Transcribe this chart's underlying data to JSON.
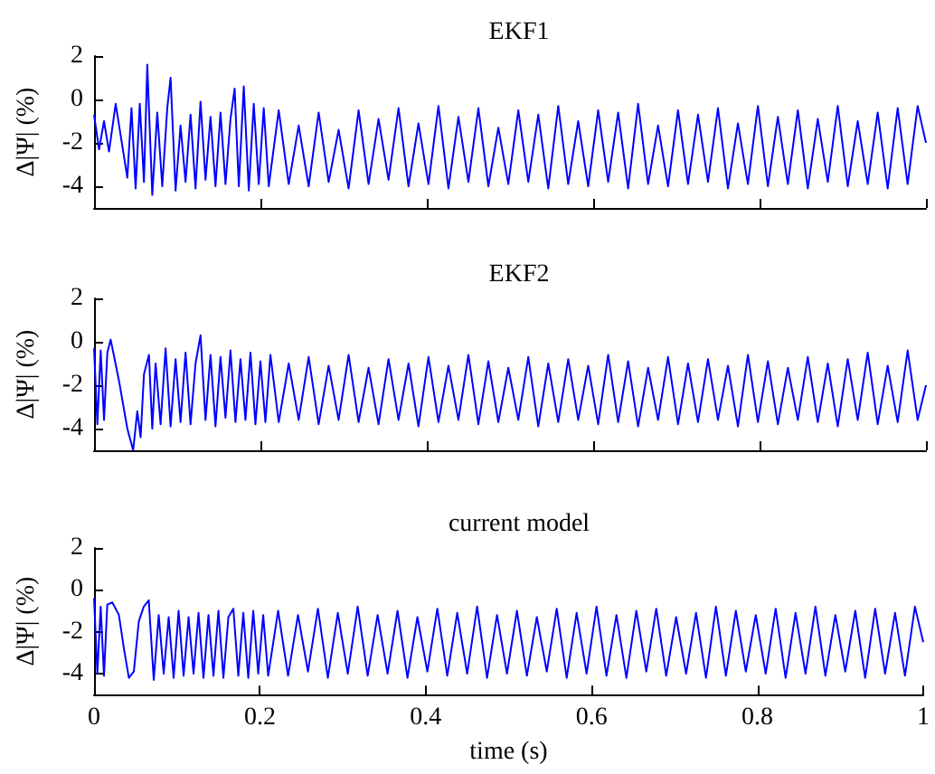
{
  "chart_data": [
    {
      "type": "line",
      "title": "EKF1",
      "ylabel": "Δ|Ψ| (%)",
      "xlim": [
        0,
        1
      ],
      "xticks": [
        0,
        0.2,
        0.4,
        0.6,
        0.8,
        1
      ],
      "ylim": [
        -5,
        2
      ],
      "yticks": [
        -4,
        -2,
        0,
        2
      ],
      "tick_labels": "y",
      "grid": false,
      "series": [
        {
          "color": "#0000ff",
          "x": [
            0,
            0.006,
            0.012,
            0.018,
            0.026,
            0.04,
            0.045,
            0.05,
            0.055,
            0.06,
            0.064,
            0.07,
            0.076,
            0.082,
            0.088,
            0.092,
            0.098,
            0.104,
            0.11,
            0.116,
            0.122,
            0.128,
            0.134,
            0.14,
            0.146,
            0.152,
            0.158,
            0.164,
            0.169,
            0.174,
            0.18,
            0.186,
            0.192,
            0.198,
            0.204,
            0.21,
            0.222,
            0.234,
            0.246,
            0.258,
            0.27,
            0.282,
            0.294,
            0.306,
            0.318,
            0.33,
            0.342,
            0.354,
            0.366,
            0.378,
            0.39,
            0.402,
            0.414,
            0.426,
            0.438,
            0.45,
            0.462,
            0.474,
            0.486,
            0.498,
            0.51,
            0.522,
            0.534,
            0.546,
            0.558,
            0.57,
            0.582,
            0.594,
            0.606,
            0.618,
            0.63,
            0.642,
            0.654,
            0.666,
            0.678,
            0.69,
            0.702,
            0.714,
            0.726,
            0.738,
            0.75,
            0.762,
            0.774,
            0.786,
            0.798,
            0.81,
            0.822,
            0.834,
            0.846,
            0.858,
            0.87,
            0.882,
            0.894,
            0.906,
            0.918,
            0.93,
            0.942,
            0.954,
            0.966,
            0.978,
            0.99,
            1
          ],
          "values": [
            -0.7,
            -2.3,
            -1.0,
            -2.4,
            -0.2,
            -3.6,
            -0.4,
            -4.1,
            -0.2,
            -3.8,
            1.6,
            -4.4,
            -0.6,
            -4.0,
            -0.4,
            1.0,
            -4.2,
            -1.2,
            -3.8,
            -0.7,
            -4.1,
            -0.1,
            -3.7,
            -0.8,
            -4.0,
            -0.6,
            -3.9,
            -0.9,
            0.5,
            -4.0,
            0.6,
            -4.2,
            -0.2,
            -3.9,
            -0.4,
            -4.0,
            -0.5,
            -3.9,
            -1.2,
            -4.0,
            -0.6,
            -3.8,
            -1.4,
            -4.1,
            -0.5,
            -3.9,
            -0.9,
            -3.7,
            -0.4,
            -4.0,
            -1.1,
            -3.9,
            -0.3,
            -4.1,
            -0.8,
            -3.8,
            -0.4,
            -4.0,
            -1.3,
            -3.9,
            -0.5,
            -3.8,
            -0.7,
            -4.1,
            -0.3,
            -3.9,
            -1.0,
            -4.0,
            -0.5,
            -3.8,
            -0.6,
            -4.1,
            -0.2,
            -3.9,
            -1.2,
            -4.0,
            -0.5,
            -3.9,
            -0.7,
            -3.8,
            -0.4,
            -4.1,
            -1.1,
            -3.9,
            -0.3,
            -4.0,
            -0.8,
            -3.9,
            -0.5,
            -4.1,
            -0.9,
            -3.8,
            -0.3,
            -4.0,
            -1.0,
            -3.9,
            -0.6,
            -4.1,
            -0.4,
            -3.9,
            -0.3,
            -2.0
          ]
        }
      ]
    },
    {
      "type": "line",
      "title": "EKF2",
      "ylabel": "Δ|Ψ| (%)",
      "xlim": [
        0,
        1
      ],
      "xticks": [
        0,
        0.2,
        0.4,
        0.6,
        0.8,
        1
      ],
      "ylim": [
        -5,
        2
      ],
      "yticks": [
        -4,
        -2,
        0,
        2
      ],
      "tick_labels": "y",
      "grid": false,
      "series": [
        {
          "color": "#0000ff",
          "x": [
            0,
            0.004,
            0.008,
            0.012,
            0.016,
            0.02,
            0.03,
            0.04,
            0.047,
            0.052,
            0.056,
            0.06,
            0.066,
            0.07,
            0.074,
            0.08,
            0.086,
            0.092,
            0.098,
            0.104,
            0.11,
            0.116,
            0.122,
            0.128,
            0.134,
            0.14,
            0.146,
            0.152,
            0.158,
            0.164,
            0.17,
            0.176,
            0.182,
            0.188,
            0.194,
            0.2,
            0.206,
            0.212,
            0.222,
            0.234,
            0.246,
            0.258,
            0.27,
            0.282,
            0.294,
            0.306,
            0.318,
            0.33,
            0.342,
            0.354,
            0.366,
            0.378,
            0.39,
            0.402,
            0.414,
            0.426,
            0.438,
            0.45,
            0.462,
            0.474,
            0.486,
            0.498,
            0.51,
            0.522,
            0.534,
            0.546,
            0.558,
            0.57,
            0.582,
            0.594,
            0.606,
            0.618,
            0.63,
            0.642,
            0.654,
            0.666,
            0.678,
            0.69,
            0.702,
            0.714,
            0.726,
            0.738,
            0.75,
            0.762,
            0.774,
            0.786,
            0.798,
            0.81,
            0.822,
            0.834,
            0.846,
            0.858,
            0.87,
            0.882,
            0.894,
            0.906,
            0.918,
            0.93,
            0.942,
            0.954,
            0.966,
            0.978,
            0.99,
            1
          ],
          "values": [
            -0.3,
            -3.8,
            -0.4,
            -3.6,
            -0.5,
            0.1,
            -1.8,
            -4.0,
            -5.0,
            -3.2,
            -4.4,
            -1.5,
            -0.6,
            -4.0,
            -1.0,
            -3.8,
            -0.3,
            -3.9,
            -0.8,
            -3.7,
            -0.5,
            -3.8,
            -1.0,
            0.3,
            -3.6,
            -0.6,
            -3.9,
            -0.7,
            -3.5,
            -0.4,
            -3.7,
            -0.8,
            -3.6,
            -0.5,
            -3.8,
            -0.9,
            -3.7,
            -0.6,
            -3.7,
            -1.0,
            -3.6,
            -0.7,
            -3.8,
            -1.1,
            -3.6,
            -0.6,
            -3.7,
            -1.2,
            -3.8,
            -0.8,
            -3.6,
            -1.0,
            -3.9,
            -0.7,
            -3.7,
            -1.1,
            -3.6,
            -0.6,
            -3.8,
            -0.9,
            -3.7,
            -1.2,
            -3.6,
            -0.7,
            -3.9,
            -1.0,
            -3.7,
            -0.8,
            -3.6,
            -1.1,
            -3.8,
            -0.6,
            -3.7,
            -0.9,
            -3.9,
            -1.2,
            -3.6,
            -0.7,
            -3.8,
            -1.0,
            -3.7,
            -0.8,
            -3.6,
            -1.1,
            -3.9,
            -0.6,
            -3.7,
            -0.9,
            -3.8,
            -1.2,
            -3.6,
            -0.7,
            -3.7,
            -1.0,
            -3.9,
            -0.8,
            -3.6,
            -0.5,
            -3.8,
            -1.1,
            -3.7,
            -0.4,
            -3.6,
            -2.0
          ]
        }
      ]
    },
    {
      "type": "line",
      "title": "current model",
      "xlabel": "time (s)",
      "ylabel": "Δ|Ψ| (%)",
      "xlim": [
        0,
        1
      ],
      "xticks": [
        0,
        0.2,
        0.4,
        0.6,
        0.8,
        1
      ],
      "ylim": [
        -5,
        2
      ],
      "yticks": [
        -4,
        -2,
        0,
        2
      ],
      "grid": false,
      "series": [
        {
          "color": "#0000ff",
          "x": [
            0,
            0.004,
            0.008,
            0.012,
            0.016,
            0.022,
            0.03,
            0.036,
            0.042,
            0.048,
            0.054,
            0.06,
            0.066,
            0.072,
            0.078,
            0.084,
            0.09,
            0.096,
            0.102,
            0.108,
            0.114,
            0.12,
            0.126,
            0.132,
            0.138,
            0.144,
            0.15,
            0.156,
            0.162,
            0.168,
            0.174,
            0.18,
            0.186,
            0.192,
            0.198,
            0.204,
            0.21,
            0.222,
            0.234,
            0.246,
            0.258,
            0.27,
            0.282,
            0.294,
            0.306,
            0.318,
            0.33,
            0.342,
            0.354,
            0.366,
            0.378,
            0.39,
            0.402,
            0.414,
            0.426,
            0.438,
            0.45,
            0.462,
            0.474,
            0.486,
            0.498,
            0.51,
            0.522,
            0.534,
            0.546,
            0.558,
            0.57,
            0.582,
            0.594,
            0.606,
            0.618,
            0.63,
            0.642,
            0.654,
            0.666,
            0.678,
            0.69,
            0.702,
            0.714,
            0.726,
            0.738,
            0.75,
            0.762,
            0.774,
            0.786,
            0.798,
            0.81,
            0.822,
            0.834,
            0.846,
            0.858,
            0.87,
            0.882,
            0.894,
            0.906,
            0.918,
            0.93,
            0.942,
            0.954,
            0.966,
            0.978,
            0.99,
            1
          ],
          "values": [
            -0.4,
            -4.0,
            -0.8,
            -4.1,
            -0.7,
            -0.6,
            -1.2,
            -2.8,
            -4.2,
            -3.9,
            -1.5,
            -0.8,
            -0.5,
            -4.3,
            -1.2,
            -4.0,
            -1.3,
            -4.2,
            -1.0,
            -4.1,
            -1.3,
            -4.0,
            -1.1,
            -4.2,
            -1.2,
            -4.1,
            -1.0,
            -4.2,
            -1.3,
            -0.9,
            -4.1,
            -1.1,
            -4.2,
            -1.0,
            -4.0,
            -1.2,
            -4.1,
            -1.0,
            -4.1,
            -1.2,
            -3.9,
            -0.9,
            -4.2,
            -1.1,
            -4.0,
            -0.8,
            -4.1,
            -1.2,
            -4.0,
            -1.0,
            -4.2,
            -1.3,
            -3.9,
            -0.9,
            -4.1,
            -1.1,
            -4.0,
            -0.8,
            -4.2,
            -1.2,
            -4.0,
            -1.0,
            -4.1,
            -1.3,
            -3.9,
            -0.9,
            -4.2,
            -1.1,
            -4.0,
            -0.8,
            -4.1,
            -1.2,
            -4.2,
            -1.0,
            -3.9,
            -0.9,
            -4.1,
            -1.3,
            -4.0,
            -1.1,
            -4.2,
            -0.8,
            -4.1,
            -1.0,
            -3.9,
            -1.2,
            -4.0,
            -0.9,
            -4.2,
            -1.1,
            -4.0,
            -0.8,
            -4.1,
            -1.2,
            -3.9,
            -1.0,
            -4.2,
            -0.9,
            -4.0,
            -1.1,
            -4.1,
            -0.8,
            -2.5
          ]
        }
      ]
    }
  ]
}
